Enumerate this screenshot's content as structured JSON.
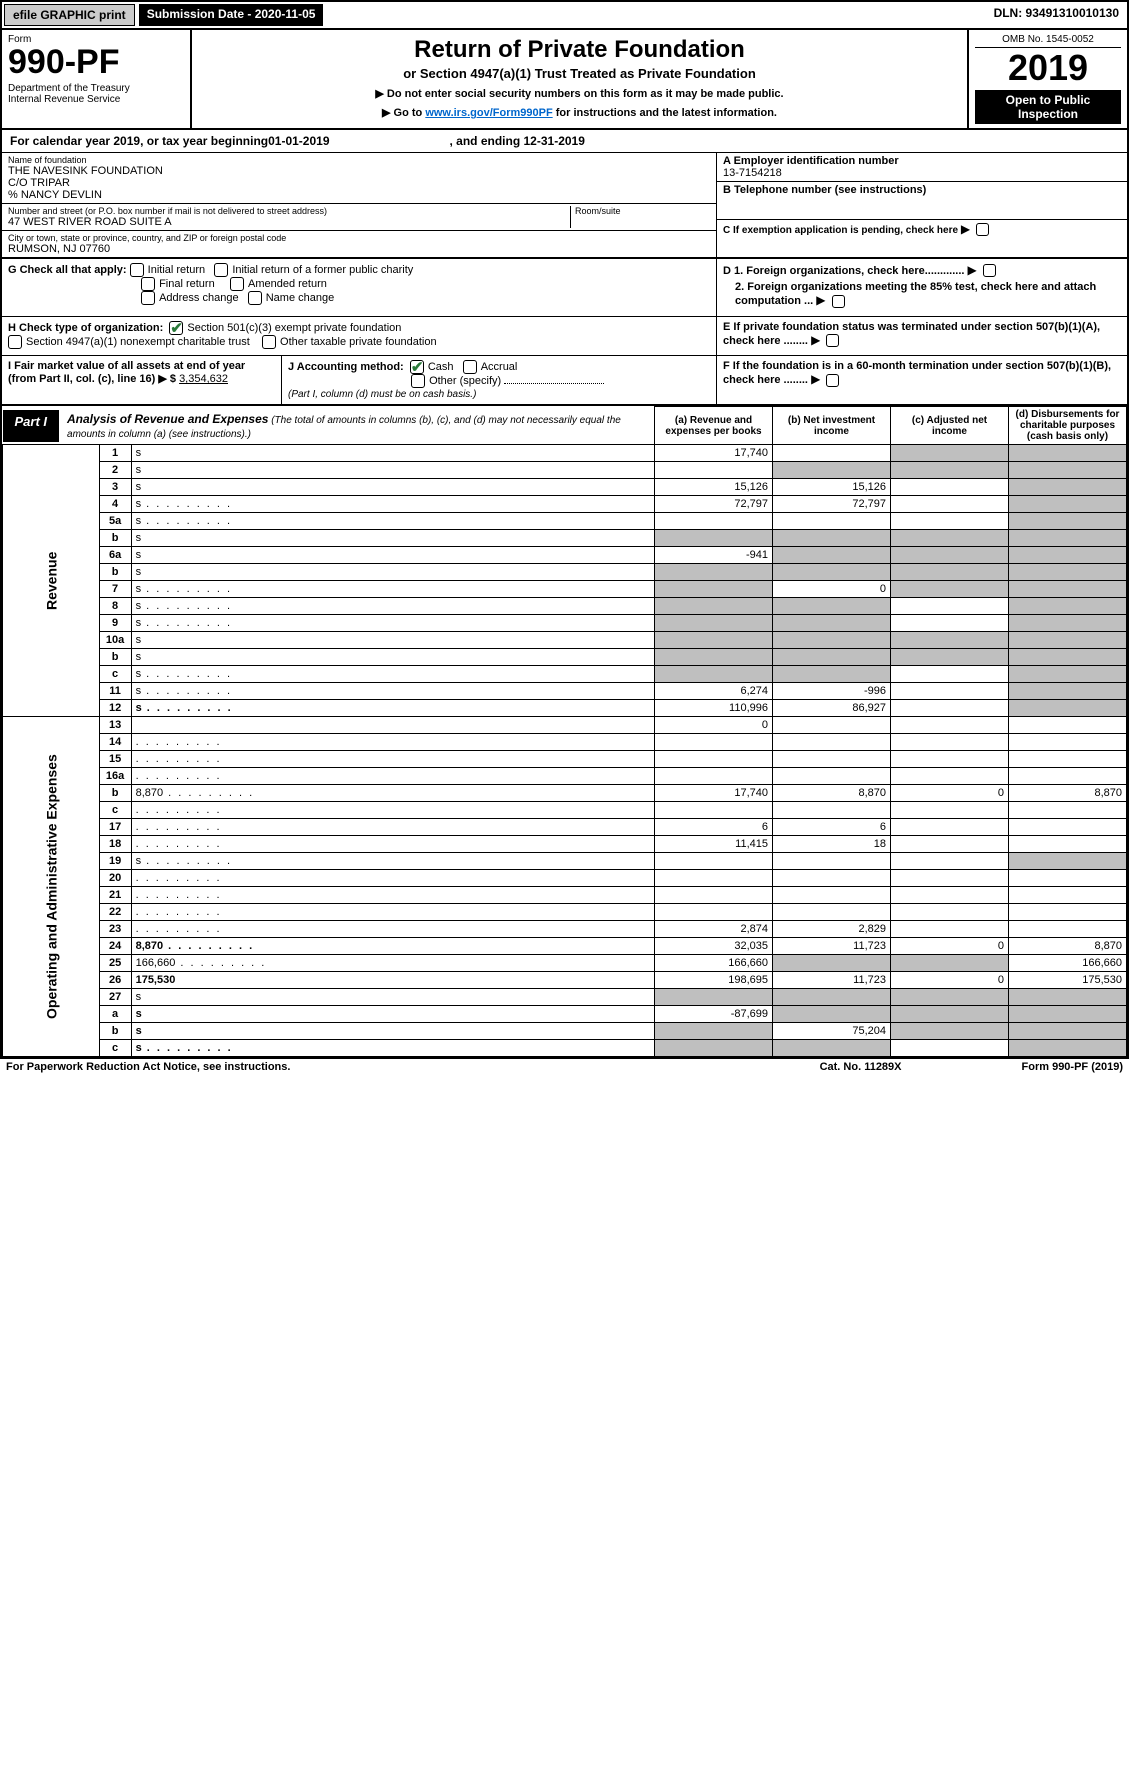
{
  "top": {
    "efile": "efile GRAPHIC print",
    "submission": "Submission Date - 2020-11-05",
    "dln": "DLN: 93491310010130"
  },
  "header": {
    "form_label": "Form",
    "form_number": "990-PF",
    "dept": "Department of the Treasury\nInternal Revenue Service",
    "title": "Return of Private Foundation",
    "subtitle": "or Section 4947(a)(1) Trust Treated as Private Foundation",
    "instr1": "▶ Do not enter social security numbers on this form as it may be made public.",
    "instr2_pre": "▶ Go to ",
    "instr2_link": "www.irs.gov/Form990PF",
    "instr2_post": " for instructions and the latest information.",
    "omb": "OMB No. 1545-0052",
    "year": "2019",
    "open": "Open to Public Inspection"
  },
  "cy": {
    "pre": "For calendar year 2019, or tax year beginning ",
    "begin": "01-01-2019",
    "mid": ", and ending ",
    "end": "12-31-2019"
  },
  "info": {
    "name_label": "Name of foundation",
    "name": "THE NAVESINK FOUNDATION\nC/O TRIPAR\n% NANCY DEVLIN",
    "addr_label": "Number and street (or P.O. box number if mail is not delivered to street address)",
    "addr": "47 WEST RIVER ROAD SUITE A",
    "room_label": "Room/suite",
    "city_label": "City or town, state or province, country, and ZIP or foreign postal code",
    "city": "RUMSON, NJ  07760",
    "a_label": "A Employer identification number",
    "ein": "13-7154218",
    "b_label": "B Telephone number (see instructions)",
    "c_label": "C If exemption application is pending, check here",
    "d1": "D 1. Foreign organizations, check here.............",
    "d2": "2. Foreign organizations meeting the 85% test, check here and attach computation ...",
    "e": "E   If private foundation status was terminated under section 507(b)(1)(A), check here ........",
    "f": "F   If the foundation is in a 60-month termination under section 507(b)(1)(B), check here ........"
  },
  "g": {
    "label": "G Check all that apply:",
    "opts": [
      "Initial return",
      "Initial return of a former public charity",
      "Final return",
      "Amended return",
      "Address change",
      "Name change"
    ]
  },
  "h": {
    "label": "H Check type of organization:",
    "o1": "Section 501(c)(3) exempt private foundation",
    "o2": "Section 4947(a)(1) nonexempt charitable trust",
    "o3": "Other taxable private foundation"
  },
  "i": {
    "label": "I Fair market value of all assets at end of year (from Part II, col. (c), line 16) ▶ $",
    "val": "3,354,632"
  },
  "j": {
    "label": "J Accounting method:",
    "o1": "Cash",
    "o2": "Accrual",
    "o3": "Other (specify)",
    "note": "(Part I, column (d) must be on cash basis.)"
  },
  "part1": {
    "tab": "Part I",
    "title": "Analysis of Revenue and Expenses",
    "sub": " (The total of amounts in columns (b), (c), and (d) may not necessarily equal the amounts in column (a) (see instructions).)",
    "cols": {
      "a": "(a)   Revenue and expenses per books",
      "b": "(b)   Net investment income",
      "c": "(c)   Adjusted net income",
      "d": "(d)   Disbursements for charitable purposes (cash basis only)"
    }
  },
  "revenue_label": "Revenue",
  "expenses_label": "Operating and Administrative Expenses",
  "rows": [
    {
      "n": "1",
      "d": "s",
      "a": "17,740",
      "b": "",
      "c": "s"
    },
    {
      "n": "2",
      "d": "s",
      "a": "",
      "b": "s",
      "c": "s",
      "html": true
    },
    {
      "n": "3",
      "d": "s",
      "a": "15,126",
      "b": "15,126",
      "c": ""
    },
    {
      "n": "4",
      "d": "s",
      "a": "72,797",
      "b": "72,797",
      "c": "",
      "dots": true
    },
    {
      "n": "5a",
      "d": "s",
      "a": "",
      "b": "",
      "c": "",
      "dots": true
    },
    {
      "n": "b",
      "d": "s",
      "a": "s",
      "b": "s",
      "c": "s"
    },
    {
      "n": "6a",
      "d": "s",
      "a": "-941",
      "b": "s",
      "c": "s"
    },
    {
      "n": "b",
      "d": "s",
      "a": "s",
      "b": "s",
      "c": "s"
    },
    {
      "n": "7",
      "d": "s",
      "a": "s",
      "b": "0",
      "c": "s",
      "dots": true
    },
    {
      "n": "8",
      "d": "s",
      "a": "s",
      "b": "s",
      "c": "",
      "dots": true
    },
    {
      "n": "9",
      "d": "s",
      "a": "s",
      "b": "s",
      "c": "",
      "dots": true
    },
    {
      "n": "10a",
      "d": "s",
      "a": "s",
      "b": "s",
      "c": "s"
    },
    {
      "n": "b",
      "d": "s",
      "a": "s",
      "b": "s",
      "c": "s"
    },
    {
      "n": "c",
      "d": "s",
      "a": "s",
      "b": "s",
      "c": "",
      "dots": true
    },
    {
      "n": "11",
      "d": "s",
      "a": "6,274",
      "b": "-996",
      "c": "",
      "dots": true
    },
    {
      "n": "12",
      "d": "s",
      "a": "110,996",
      "b": "86,927",
      "c": "",
      "bold": true,
      "dots": true
    }
  ],
  "exp_rows": [
    {
      "n": "13",
      "d": "",
      "a": "0",
      "b": "",
      "c": ""
    },
    {
      "n": "14",
      "d": "",
      "a": "",
      "b": "",
      "c": "",
      "dots": true
    },
    {
      "n": "15",
      "d": "",
      "a": "",
      "b": "",
      "c": "",
      "dots": true
    },
    {
      "n": "16a",
      "d": "",
      "a": "",
      "b": "",
      "c": "",
      "dots": true
    },
    {
      "n": "b",
      "d": "8,870",
      "a": "17,740",
      "b": "8,870",
      "c": "0",
      "dots": true
    },
    {
      "n": "c",
      "d": "",
      "a": "",
      "b": "",
      "c": "",
      "dots": true
    },
    {
      "n": "17",
      "d": "",
      "a": "6",
      "b": "6",
      "c": "",
      "dots": true
    },
    {
      "n": "18",
      "d": "",
      "a": "11,415",
      "b": "18",
      "c": "",
      "dots": true
    },
    {
      "n": "19",
      "d": "s",
      "a": "",
      "b": "",
      "c": "",
      "dots": true
    },
    {
      "n": "20",
      "d": "",
      "a": "",
      "b": "",
      "c": "",
      "dots": true
    },
    {
      "n": "21",
      "d": "",
      "a": "",
      "b": "",
      "c": "",
      "dots": true
    },
    {
      "n": "22",
      "d": "",
      "a": "",
      "b": "",
      "c": "",
      "dots": true
    },
    {
      "n": "23",
      "d": "",
      "a": "2,874",
      "b": "2,829",
      "c": "",
      "dots": true
    },
    {
      "n": "24",
      "d": "8,870",
      "a": "32,035",
      "b": "11,723",
      "c": "0",
      "bold": true,
      "dots": true
    },
    {
      "n": "25",
      "d": "166,660",
      "a": "166,660",
      "b": "s",
      "c": "s",
      "dots": true
    },
    {
      "n": "26",
      "d": "175,530",
      "a": "198,695",
      "b": "11,723",
      "c": "0",
      "bold": true
    },
    {
      "n": "27",
      "d": "s",
      "a": "s",
      "b": "s",
      "c": "s"
    },
    {
      "n": "a",
      "d": "s",
      "a": "-87,699",
      "b": "s",
      "c": "s",
      "bold": true
    },
    {
      "n": "b",
      "d": "s",
      "a": "s",
      "b": "75,204",
      "c": "s",
      "bold": true
    },
    {
      "n": "c",
      "d": "s",
      "a": "s",
      "b": "s",
      "c": "",
      "bold": true,
      "dots": true
    }
  ],
  "foot": {
    "l": "For Paperwork Reduction Act Notice, see instructions.",
    "m": "Cat. No. 11289X",
    "r": "Form 990-PF (2019)"
  },
  "colors": {
    "link": "#0066cc",
    "check": "#2a7a3a",
    "shade": "#bfbfbf"
  }
}
